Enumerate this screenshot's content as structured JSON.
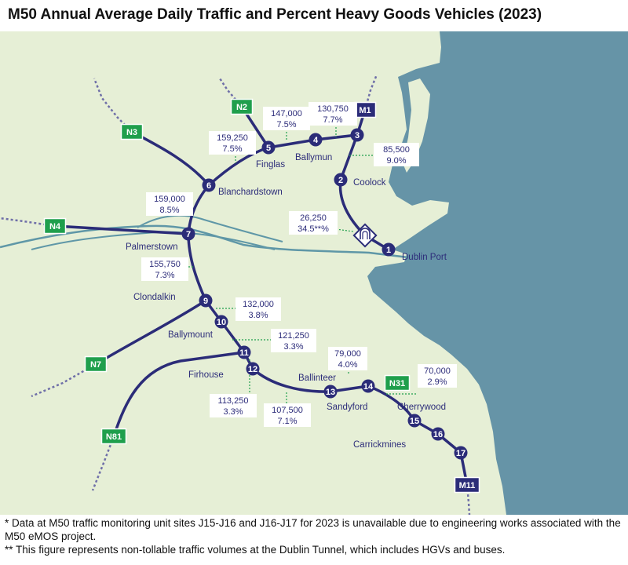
{
  "title": "M50 Annual Average Daily Traffic and Percent Heavy Goods Vehicles (2023)",
  "colors": {
    "land": "#e6efd6",
    "sea": "#6694a7",
    "river": "#5f97a7",
    "motorway": "#2b2c78",
    "national_route": "#1f9f4c",
    "connector": "#6f6fa8",
    "leader": "#1f9f4c",
    "label_text": "#2d2d7a"
  },
  "junctions": [
    "1",
    "2",
    "3",
    "4",
    "5",
    "6",
    "7",
    "9",
    "10",
    "11",
    "12",
    "13",
    "14",
    "15",
    "16",
    "17"
  ],
  "places": [
    "Finglas",
    "Ballymun",
    "Coolock",
    "Blanchardstown",
    "Palmerstown",
    "Dublin Port",
    "Clondalkin",
    "Ballymount",
    "Firhouse",
    "Ballinteer",
    "Sandyford",
    "Cherrywood",
    "Carrickmines"
  ],
  "route_shields": [
    {
      "label": "N2",
      "kind": "national"
    },
    {
      "label": "M1",
      "kind": "motorway"
    },
    {
      "label": "N3",
      "kind": "national"
    },
    {
      "label": "N4",
      "kind": "national"
    },
    {
      "label": "N7",
      "kind": "national"
    },
    {
      "label": "N31",
      "kind": "national"
    },
    {
      "label": "N81",
      "kind": "national"
    },
    {
      "label": "M11",
      "kind": "motorway"
    }
  ],
  "tunnel_icon": "tunnel-icon",
  "traffic_labels": [
    {
      "aadt": "147,000",
      "hgv": "7.5%"
    },
    {
      "aadt": "130,750",
      "hgv": "7.7%"
    },
    {
      "aadt": "159,250",
      "hgv": "7.5%"
    },
    {
      "aadt": "85,500",
      "hgv": "9.0%"
    },
    {
      "aadt": "159,000",
      "hgv": "8.5%"
    },
    {
      "aadt": "26,250",
      "hgv": "34.5**%"
    },
    {
      "aadt": "155,750",
      "hgv": "7.3%"
    },
    {
      "aadt": "132,000",
      "hgv": "3.8%"
    },
    {
      "aadt": "121,250",
      "hgv": "3.3%"
    },
    {
      "aadt": "79,000",
      "hgv": "4.0%"
    },
    {
      "aadt": "70,000",
      "hgv": "2.9%"
    },
    {
      "aadt": "113,250",
      "hgv": "3.3%"
    },
    {
      "aadt": "107,500",
      "hgv": "7.1%"
    }
  ],
  "notes": [
    "* Data at M50 traffic monitoring unit sites J15-J16 and J16-J17 for 2023 is unavailable due to engineering works associated with the M50 eMOS project.",
    "** This figure represents non-tollable traffic volumes at the Dublin Tunnel, which includes HGVs and buses."
  ]
}
